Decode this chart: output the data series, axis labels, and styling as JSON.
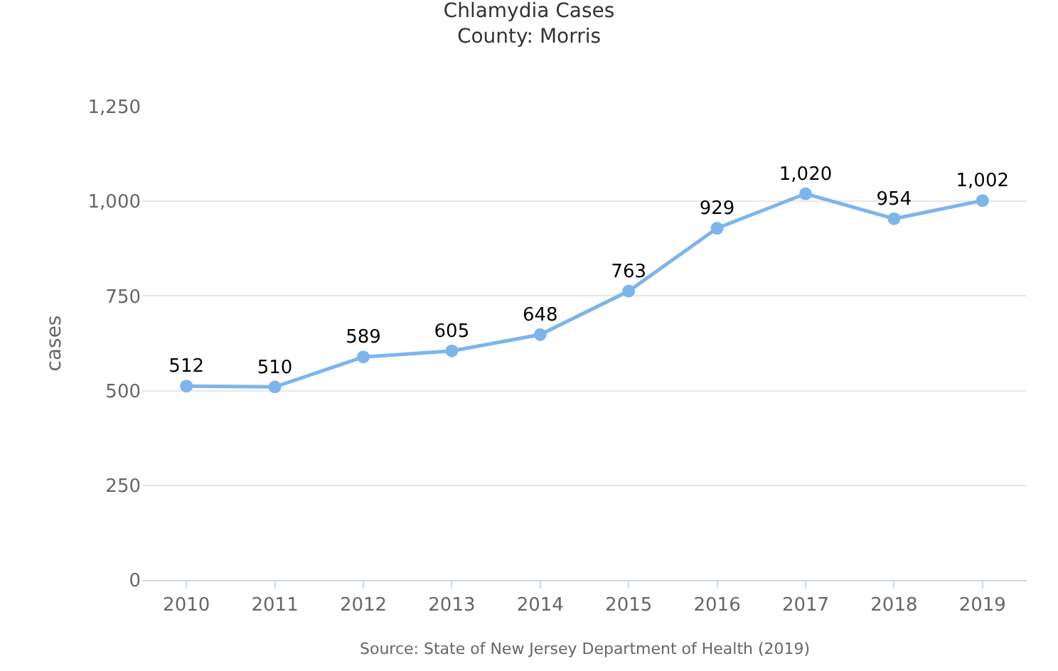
{
  "chart_data": {
    "type": "line",
    "title": "Chlamydia Cases",
    "subtitle": "County: Morris",
    "ylabel": "cases",
    "categories": [
      "2010",
      "2011",
      "2012",
      "2013",
      "2014",
      "2015",
      "2016",
      "2017",
      "2018",
      "2019"
    ],
    "series": [
      {
        "color": "#7cb5ec",
        "values": [
          512,
          510,
          589,
          605,
          648,
          763,
          929,
          1020,
          954,
          1002
        ],
        "value_labels": [
          "512",
          "510",
          "589",
          "605",
          "648",
          "763",
          "929",
          "1,020",
          "954",
          "1,002"
        ]
      }
    ],
    "ylim": [
      0,
      1250
    ],
    "yticks": [
      0,
      250,
      500,
      750,
      {
        "value": 1000,
        "label": "1,000"
      },
      {
        "value": 1250,
        "label": "1,250"
      }
    ],
    "grid": "y",
    "marker": "circle",
    "line_style": "solid",
    "annotations": [
      "Source: State of New Jersey Department of Health (2019)"
    ]
  }
}
